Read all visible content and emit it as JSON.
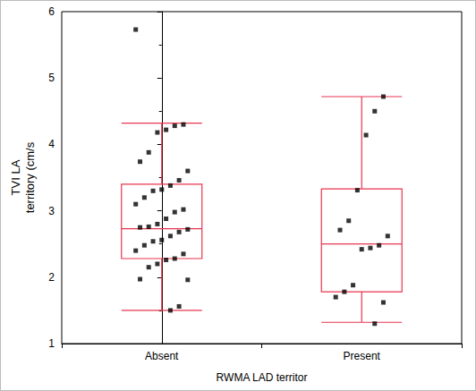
{
  "chart_data": {
    "type": "boxplot",
    "x_label": "RWMA LAD territor",
    "y_label": "TVI LA\nterritory (cm/s",
    "categories": [
      "Absent",
      "Present"
    ],
    "ylim": [
      1,
      6
    ],
    "yticks": [
      1,
      2,
      3,
      4,
      5,
      6
    ],
    "grid": false,
    "series": [
      {
        "type": "boxplot",
        "color": "#e8364f",
        "values": [
          [
            1.5,
            2.28,
            2.73,
            3.4,
            4.32
          ],
          [
            1.32,
            1.78,
            2.5,
            3.33,
            4.72
          ]
        ]
      },
      {
        "type": "scatter",
        "color": "#000000",
        "marker": "square",
        "values": [
          [
            5.73,
            4.3,
            4.28,
            4.22,
            4.18,
            3.88,
            3.74,
            3.6,
            3.46,
            3.38,
            3.32,
            3.3,
            3.2,
            3.1,
            3.02,
            2.98,
            2.88,
            2.8,
            2.76,
            2.75,
            2.72,
            2.68,
            2.62,
            2.56,
            2.54,
            2.48,
            2.4,
            2.35,
            2.28,
            2.26,
            2.2,
            2.15,
            1.97,
            1.96,
            1.56,
            1.5
          ],
          [
            4.72,
            4.5,
            4.14,
            3.31,
            2.85,
            2.71,
            2.62,
            2.48,
            2.44,
            2.42,
            1.88,
            1.78,
            1.7,
            1.62,
            1.3
          ]
        ]
      }
    ]
  }
}
